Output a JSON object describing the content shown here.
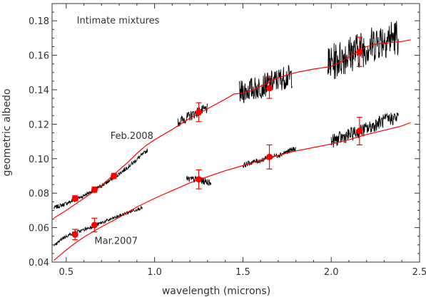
{
  "chart_data": {
    "type": "scatter",
    "xlabel": "wavelength (microns)",
    "ylabel": "geometric albedo",
    "xlim": [
      0.42,
      2.5
    ],
    "ylim": [
      0.04,
      0.19
    ],
    "xticks": [
      0.5,
      1.0,
      1.5,
      2.0,
      2.5
    ],
    "xticklabels": [
      "0.5",
      "1.0",
      "1.5",
      "2.0",
      "2.5"
    ],
    "yticks": [
      0.04,
      0.06,
      0.08,
      0.1,
      0.12,
      0.14,
      0.16,
      0.18
    ],
    "yticklabels": [
      "0.04",
      "0.06",
      "0.08",
      "0.10",
      "0.12",
      "0.14",
      "0.16",
      "0.18"
    ],
    "grid": false,
    "annotations": [
      {
        "text": "Intimate mixtures",
        "x": 0.56,
        "y": 0.1785
      },
      {
        "text": "Feb.2008",
        "x": 0.75,
        "y": 0.1115
      },
      {
        "text": "Mar.2007",
        "x": 0.66,
        "y": 0.0505
      }
    ],
    "series": [
      {
        "color": "#000000",
        "kind": "spectrum",
        "segments": [
          {
            "x0": 0.43,
            "x1": 0.96,
            "y": [
              0.0715,
              0.073,
              0.0748,
              0.0766,
              0.079,
              0.0815,
              0.084,
              0.0868,
              0.09,
              0.0935,
              0.097,
              0.101,
              0.105
            ],
            "noise": 0.0012
          },
          {
            "x0": 1.13,
            "x1": 1.3,
            "y": [
              0.121,
              0.124,
              0.127,
              0.129
            ],
            "noise": 0.003
          },
          {
            "x0": 1.48,
            "x1": 1.78,
            "y": [
              0.138,
              0.14,
              0.141,
              0.143,
              0.145,
              0.147,
              0.148
            ],
            "noise": 0.007
          },
          {
            "x0": 1.98,
            "x1": 2.38,
            "y": [
              0.154,
              0.157,
              0.16,
              0.162,
              0.164,
              0.166,
              0.169,
              0.17,
              0.171
            ],
            "noise": 0.011
          }
        ]
      },
      {
        "color": "#000000",
        "kind": "spectrum",
        "segments": [
          {
            "x0": 0.43,
            "x1": 0.93,
            "y": [
              0.049,
              0.054,
              0.0565,
              0.058,
              0.06,
              0.062,
              0.064,
              0.066,
              0.068,
              0.07,
              0.0715
            ],
            "noise": 0.001
          },
          {
            "x0": 1.18,
            "x1": 1.32,
            "y": [
              0.088,
              0.088,
              0.087,
              0.086
            ],
            "noise": 0.002
          },
          {
            "x0": 1.5,
            "x1": 1.8,
            "y": [
              0.096,
              0.098,
              0.099,
              0.101,
              0.102,
              0.104,
              0.106
            ],
            "noise": 0.0015
          },
          {
            "x0": 2.0,
            "x1": 2.38,
            "y": [
              0.11,
              0.112,
              0.114,
              0.116,
              0.118,
              0.121,
              0.123,
              0.124
            ],
            "noise": 0.004
          }
        ]
      },
      {
        "color": "#ff0000",
        "kind": "model",
        "x": [
          0.43,
          0.5,
          0.55,
          0.6,
          0.65,
          0.7,
          0.75,
          0.8,
          0.85,
          0.9,
          0.95,
          1.0,
          1.1,
          1.2,
          1.3,
          1.4,
          1.45,
          1.5,
          1.55,
          1.6,
          1.7,
          1.8,
          1.9,
          2.0,
          2.05,
          2.1,
          2.15,
          2.2,
          2.25,
          2.3,
          2.4,
          2.45
        ],
        "y": [
          0.0655,
          0.07,
          0.0735,
          0.077,
          0.0805,
          0.0845,
          0.089,
          0.0935,
          0.098,
          0.103,
          0.1075,
          0.111,
          0.117,
          0.1235,
          0.129,
          0.1345,
          0.1375,
          0.138,
          0.1395,
          0.142,
          0.147,
          0.15,
          0.152,
          0.1535,
          0.156,
          0.159,
          0.162,
          0.165,
          0.1665,
          0.167,
          0.168,
          0.169
        ]
      },
      {
        "color": "#ff0000",
        "kind": "model",
        "x": [
          0.43,
          0.5,
          0.55,
          0.6,
          0.65,
          0.7,
          0.8,
          0.9,
          1.0,
          1.1,
          1.2,
          1.3,
          1.4,
          1.5,
          1.6,
          1.7,
          1.8,
          1.9,
          2.0,
          2.1,
          2.2,
          2.3,
          2.4,
          2.45
        ],
        "y": [
          0.041,
          0.047,
          0.051,
          0.0545,
          0.0575,
          0.0605,
          0.066,
          0.072,
          0.077,
          0.0815,
          0.086,
          0.0895,
          0.093,
          0.096,
          0.099,
          0.102,
          0.1045,
          0.1065,
          0.1085,
          0.111,
          0.114,
          0.1165,
          0.119,
          0.121
        ]
      },
      {
        "color": "#ff0000",
        "kind": "points",
        "x": [
          0.55,
          0.66,
          0.77,
          1.25,
          1.65,
          2.16
        ],
        "y": [
          0.077,
          0.082,
          0.09,
          0.127,
          0.141,
          0.162
        ],
        "err": [
          0.0015,
          0.0015,
          0.0015,
          0.0055,
          0.006,
          0.0085
        ]
      },
      {
        "color": "#ff0000",
        "kind": "points",
        "x": [
          0.55,
          0.66,
          1.25,
          1.65,
          2.16
        ],
        "y": [
          0.056,
          0.0615,
          0.088,
          0.101,
          0.116
        ],
        "err": [
          0.003,
          0.004,
          0.0055,
          0.007,
          0.008
        ]
      }
    ]
  }
}
